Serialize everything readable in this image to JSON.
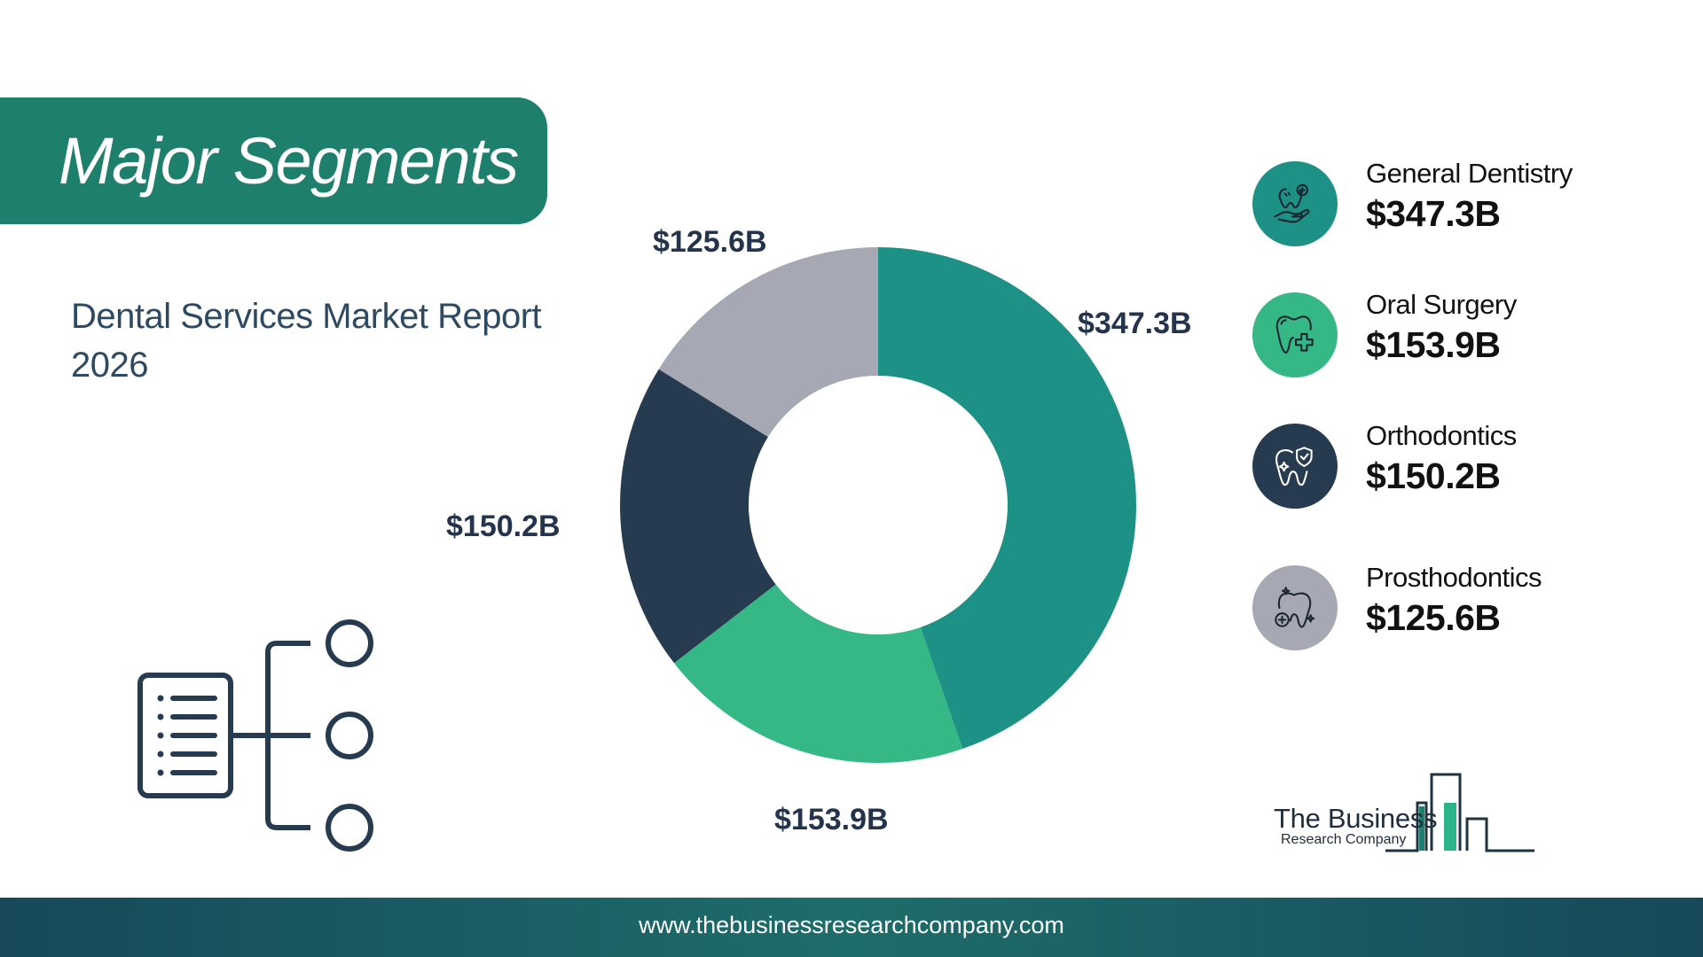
{
  "header": {
    "title": "Major Segments"
  },
  "subtitle": "Dental Services Market Report 2026",
  "chart_data": {
    "type": "pie",
    "donut": true,
    "categories": [
      "General Dentistry",
      "Oral Surgery",
      "Orthodontics",
      "Prosthodontics"
    ],
    "values": [
      347.3,
      153.9,
      150.2,
      125.6
    ],
    "labels": [
      "$347.3B",
      "$153.9B",
      "$150.2B",
      "$125.6B"
    ],
    "colors": [
      "#1e9186",
      "#35b886",
      "#263a50",
      "#a6a9b4"
    ],
    "unit": "$B"
  },
  "legend": [
    {
      "name": "General Dentistry",
      "value": "$347.3B",
      "color": "#1e9186",
      "icon": "tooth-care-hand-icon"
    },
    {
      "name": "Oral Surgery",
      "value": "$153.9B",
      "color": "#35b886",
      "icon": "tooth-plus-icon"
    },
    {
      "name": "Orthodontics",
      "value": "$150.2B",
      "color": "#263a50",
      "icon": "tooth-shield-icon"
    },
    {
      "name": "Prosthodontics",
      "value": "$125.6B",
      "color": "#a6a9b4",
      "icon": "tooth-sparkle-icon"
    }
  ],
  "logo": {
    "line1": "The Business",
    "line2": "Research Company"
  },
  "footer": {
    "url": "www.thebusinessresearchcompany.com"
  }
}
